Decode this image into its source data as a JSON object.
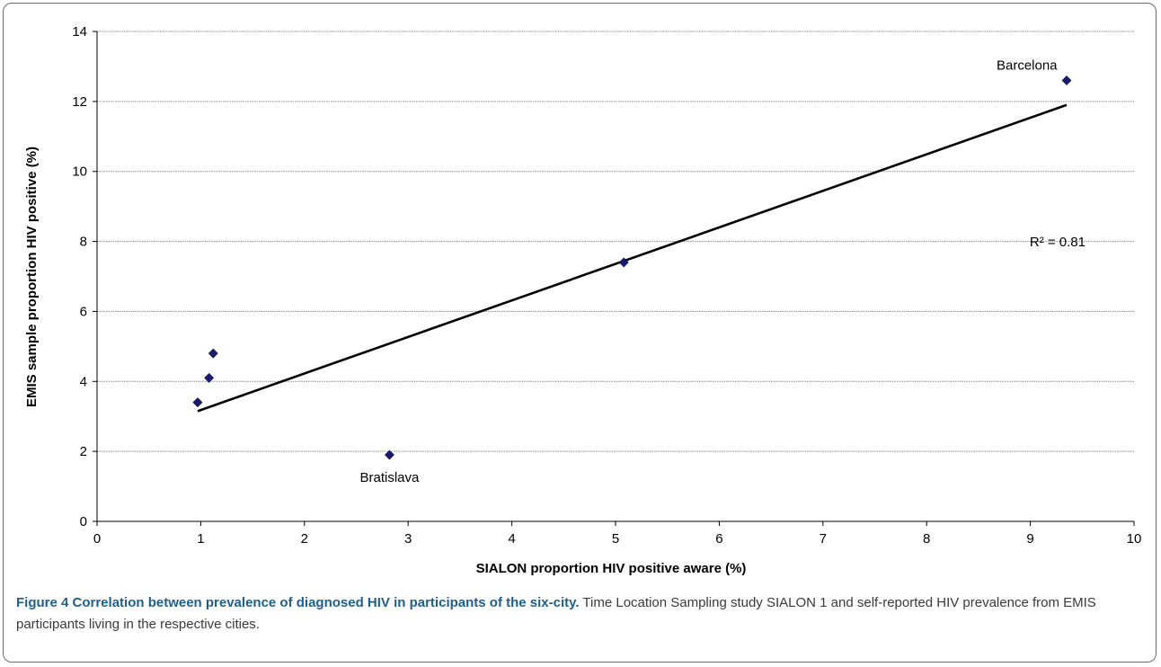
{
  "chart_data": {
    "type": "scatter",
    "title": "",
    "xlabel": "SIALON proportion HIV positive aware (%)",
    "ylabel": "EMIS sample proportion HIV positive (%)",
    "xlim": [
      0,
      10
    ],
    "ylim": [
      0,
      14
    ],
    "x_ticks": [
      "0",
      "1",
      "2",
      "3",
      "4",
      "5",
      "6",
      "7",
      "8",
      "9",
      "10"
    ],
    "y_ticks": [
      "0",
      "2",
      "4",
      "6",
      "8",
      "10",
      "12",
      "14"
    ],
    "horizontal_grid": true,
    "legend": "none",
    "series": [
      {
        "points": [
          {
            "x": 0.97,
            "y": 3.4
          },
          {
            "x": 1.08,
            "y": 4.1
          },
          {
            "x": 1.12,
            "y": 4.8
          },
          {
            "x": 2.82,
            "y": 1.9
          },
          {
            "x": 5.08,
            "y": 7.4
          },
          {
            "x": 9.35,
            "y": 12.6
          }
        ]
      }
    ],
    "point_labels": [
      {
        "text": "Barcelona",
        "x": 9.35,
        "y": 12.6
      },
      {
        "text": "Bratislava",
        "x": 2.82,
        "y": 1.9
      }
    ],
    "trendline": {
      "x": [
        0.97,
        9.35
      ],
      "y": [
        3.15,
        11.9
      ]
    },
    "annotations": [
      "R² = 0.81"
    ],
    "colors": {
      "marker": "#1a1a6e",
      "trendline": "#000000",
      "grid": "#8c8c8c"
    }
  },
  "caption": {
    "title": "Figure 4 Correlation between prevalence of diagnosed HIV in participants of the six-city.",
    "text": " Time Location Sampling study SIALON 1 and self-reported HIV prevalence from EMIS participants living in the respective cities."
  }
}
